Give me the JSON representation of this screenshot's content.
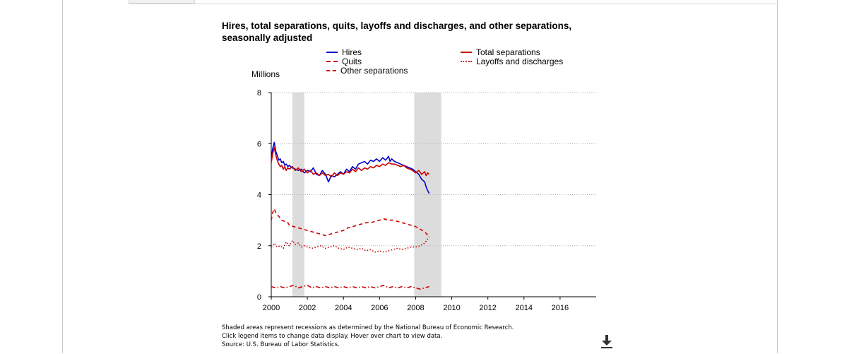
{
  "chart_data": {
    "type": "line",
    "title": "Hires, total separations, quits, layoffs and discharges, and other separations, seasonally adjusted",
    "ylabel": "Millions",
    "xlabel": "",
    "xlim": [
      2000,
      2018
    ],
    "ylim": [
      0,
      8
    ],
    "x_ticks": [
      "2000",
      "2002",
      "2004",
      "2006",
      "2008",
      "2010",
      "2012",
      "2014",
      "2016"
    ],
    "y_ticks": [
      "0",
      "2",
      "4",
      "6",
      "8"
    ],
    "grid": "horizontal dotted",
    "recessions": [
      {
        "start": 2001.17,
        "end": 2001.83
      },
      {
        "start": 2007.92,
        "end": 2009.42
      }
    ],
    "series": [
      {
        "name": "Hires",
        "color": "#0000cc",
        "style": "solid",
        "points": [
          [
            2000.0,
            5.4
          ],
          [
            2000.08,
            5.8
          ],
          [
            2000.17,
            6.05
          ],
          [
            2000.25,
            5.7
          ],
          [
            2000.33,
            5.55
          ],
          [
            2000.42,
            5.35
          ],
          [
            2000.5,
            5.4
          ],
          [
            2000.58,
            5.25
          ],
          [
            2000.67,
            5.3
          ],
          [
            2000.75,
            5.15
          ],
          [
            2000.83,
            5.2
          ],
          [
            2000.92,
            5.1
          ],
          [
            2001.0,
            5.15
          ],
          [
            2001.17,
            5.05
          ],
          [
            2001.33,
            5.0
          ],
          [
            2001.5,
            4.95
          ],
          [
            2001.67,
            5.0
          ],
          [
            2001.83,
            4.85
          ],
          [
            2002.0,
            4.95
          ],
          [
            2002.17,
            4.9
          ],
          [
            2002.33,
            5.05
          ],
          [
            2002.5,
            4.8
          ],
          [
            2002.67,
            4.75
          ],
          [
            2002.83,
            4.95
          ],
          [
            2003.0,
            4.8
          ],
          [
            2003.17,
            4.5
          ],
          [
            2003.33,
            4.75
          ],
          [
            2003.5,
            4.7
          ],
          [
            2003.67,
            4.8
          ],
          [
            2003.83,
            4.9
          ],
          [
            2004.0,
            4.8
          ],
          [
            2004.17,
            5.0
          ],
          [
            2004.33,
            4.9
          ],
          [
            2004.5,
            5.1
          ],
          [
            2004.67,
            5.0
          ],
          [
            2004.83,
            5.2
          ],
          [
            2005.0,
            5.25
          ],
          [
            2005.17,
            5.3
          ],
          [
            2005.33,
            5.2
          ],
          [
            2005.5,
            5.35
          ],
          [
            2005.67,
            5.3
          ],
          [
            2005.83,
            5.4
          ],
          [
            2006.0,
            5.3
          ],
          [
            2006.17,
            5.45
          ],
          [
            2006.33,
            5.35
          ],
          [
            2006.5,
            5.5
          ],
          [
            2006.58,
            5.3
          ],
          [
            2006.67,
            5.4
          ],
          [
            2006.83,
            5.3
          ],
          [
            2007.0,
            5.25
          ],
          [
            2007.17,
            5.2
          ],
          [
            2007.33,
            5.15
          ],
          [
            2007.5,
            5.1
          ],
          [
            2007.67,
            5.05
          ],
          [
            2007.83,
            5.0
          ],
          [
            2008.0,
            4.9
          ],
          [
            2008.17,
            4.8
          ],
          [
            2008.33,
            4.6
          ],
          [
            2008.5,
            4.5
          ],
          [
            2008.58,
            4.3
          ],
          [
            2008.67,
            4.15
          ],
          [
            2008.75,
            4.05
          ]
        ]
      },
      {
        "name": "Total separations",
        "color": "#cc0000",
        "style": "solid",
        "points": [
          [
            2000.0,
            5.25
          ],
          [
            2000.08,
            5.6
          ],
          [
            2000.17,
            5.85
          ],
          [
            2000.25,
            5.55
          ],
          [
            2000.33,
            5.35
          ],
          [
            2000.42,
            5.2
          ],
          [
            2000.5,
            5.1
          ],
          [
            2000.58,
            5.15
          ],
          [
            2000.67,
            5.0
          ],
          [
            2000.75,
            5.1
          ],
          [
            2000.83,
            4.95
          ],
          [
            2000.92,
            5.05
          ],
          [
            2001.0,
            5.0
          ],
          [
            2001.17,
            5.1
          ],
          [
            2001.33,
            4.95
          ],
          [
            2001.5,
            5.05
          ],
          [
            2001.67,
            4.9
          ],
          [
            2001.83,
            5.0
          ],
          [
            2002.0,
            4.85
          ],
          [
            2002.17,
            4.95
          ],
          [
            2002.33,
            4.8
          ],
          [
            2002.5,
            4.85
          ],
          [
            2002.67,
            4.75
          ],
          [
            2002.83,
            4.85
          ],
          [
            2003.0,
            4.75
          ],
          [
            2003.17,
            4.8
          ],
          [
            2003.33,
            4.7
          ],
          [
            2003.5,
            4.85
          ],
          [
            2003.67,
            4.75
          ],
          [
            2003.83,
            4.85
          ],
          [
            2004.0,
            4.8
          ],
          [
            2004.17,
            4.9
          ],
          [
            2004.33,
            4.85
          ],
          [
            2004.5,
            5.0
          ],
          [
            2004.67,
            4.9
          ],
          [
            2004.83,
            5.05
          ],
          [
            2005.0,
            4.95
          ],
          [
            2005.17,
            5.05
          ],
          [
            2005.33,
            5.0
          ],
          [
            2005.5,
            5.1
          ],
          [
            2005.67,
            5.05
          ],
          [
            2005.83,
            5.15
          ],
          [
            2006.0,
            5.1
          ],
          [
            2006.17,
            5.2
          ],
          [
            2006.33,
            5.15
          ],
          [
            2006.5,
            5.25
          ],
          [
            2006.67,
            5.2
          ],
          [
            2006.83,
            5.2
          ],
          [
            2007.0,
            5.15
          ],
          [
            2007.17,
            5.1
          ],
          [
            2007.33,
            5.15
          ],
          [
            2007.5,
            5.05
          ],
          [
            2007.67,
            5.0
          ],
          [
            2007.83,
            4.95
          ],
          [
            2008.0,
            4.85
          ],
          [
            2008.17,
            4.95
          ],
          [
            2008.33,
            4.8
          ],
          [
            2008.5,
            4.9
          ],
          [
            2008.58,
            4.75
          ],
          [
            2008.67,
            4.85
          ],
          [
            2008.75,
            4.8
          ]
        ]
      },
      {
        "name": "Quits",
        "color": "#cc0000",
        "style": "dashed",
        "points": [
          [
            2000.0,
            3.0
          ],
          [
            2000.08,
            3.3
          ],
          [
            2000.17,
            3.45
          ],
          [
            2000.25,
            3.3
          ],
          [
            2000.42,
            3.15
          ],
          [
            2000.58,
            3.0
          ],
          [
            2000.75,
            2.95
          ],
          [
            2000.92,
            2.9
          ],
          [
            2001.0,
            2.8
          ],
          [
            2001.25,
            2.75
          ],
          [
            2001.5,
            2.7
          ],
          [
            2001.75,
            2.65
          ],
          [
            2002.0,
            2.6
          ],
          [
            2002.25,
            2.55
          ],
          [
            2002.5,
            2.5
          ],
          [
            2002.75,
            2.45
          ],
          [
            2003.0,
            2.4
          ],
          [
            2003.25,
            2.45
          ],
          [
            2003.5,
            2.5
          ],
          [
            2003.75,
            2.55
          ],
          [
            2004.0,
            2.6
          ],
          [
            2004.25,
            2.7
          ],
          [
            2004.5,
            2.75
          ],
          [
            2004.75,
            2.8
          ],
          [
            2005.0,
            2.85
          ],
          [
            2005.25,
            2.9
          ],
          [
            2005.5,
            2.9
          ],
          [
            2005.75,
            2.95
          ],
          [
            2006.0,
            3.0
          ],
          [
            2006.25,
            3.05
          ],
          [
            2006.5,
            3.0
          ],
          [
            2006.75,
            3.0
          ],
          [
            2007.0,
            2.95
          ],
          [
            2007.25,
            2.9
          ],
          [
            2007.5,
            2.85
          ],
          [
            2007.75,
            2.8
          ],
          [
            2008.0,
            2.75
          ],
          [
            2008.25,
            2.65
          ],
          [
            2008.5,
            2.55
          ],
          [
            2008.75,
            2.35
          ]
        ]
      },
      {
        "name": "Layoffs and discharges",
        "color": "#cc0000",
        "style": "dotted",
        "points": [
          [
            2000.0,
            1.95
          ],
          [
            2000.17,
            2.1
          ],
          [
            2000.33,
            1.95
          ],
          [
            2000.5,
            2.0
          ],
          [
            2000.67,
            1.9
          ],
          [
            2000.83,
            2.15
          ],
          [
            2001.0,
            2.0
          ],
          [
            2001.17,
            2.2
          ],
          [
            2001.33,
            2.05
          ],
          [
            2001.5,
            2.1
          ],
          [
            2001.67,
            1.95
          ],
          [
            2001.83,
            2.0
          ],
          [
            2002.0,
            1.95
          ],
          [
            2002.25,
            1.9
          ],
          [
            2002.5,
            1.95
          ],
          [
            2002.75,
            2.0
          ],
          [
            2003.0,
            1.9
          ],
          [
            2003.25,
            1.95
          ],
          [
            2003.5,
            2.0
          ],
          [
            2003.75,
            1.9
          ],
          [
            2004.0,
            1.85
          ],
          [
            2004.25,
            1.95
          ],
          [
            2004.5,
            1.9
          ],
          [
            2004.75,
            1.85
          ],
          [
            2005.0,
            1.9
          ],
          [
            2005.25,
            1.8
          ],
          [
            2005.5,
            1.85
          ],
          [
            2005.75,
            1.75
          ],
          [
            2006.0,
            1.8
          ],
          [
            2006.25,
            1.75
          ],
          [
            2006.5,
            1.8
          ],
          [
            2006.75,
            1.85
          ],
          [
            2007.0,
            1.9
          ],
          [
            2007.25,
            1.85
          ],
          [
            2007.5,
            1.9
          ],
          [
            2007.75,
            1.95
          ],
          [
            2008.0,
            1.95
          ],
          [
            2008.25,
            2.0
          ],
          [
            2008.5,
            2.1
          ],
          [
            2008.75,
            2.35
          ]
        ]
      },
      {
        "name": "Other separations",
        "color": "#cc0000",
        "style": "dashdot",
        "points": [
          [
            2000.0,
            0.4
          ],
          [
            2000.25,
            0.35
          ],
          [
            2000.5,
            0.4
          ],
          [
            2000.75,
            0.35
          ],
          [
            2001.0,
            0.4
          ],
          [
            2001.25,
            0.45
          ],
          [
            2001.5,
            0.35
          ],
          [
            2001.75,
            0.4
          ],
          [
            2002.0,
            0.45
          ],
          [
            2002.25,
            0.35
          ],
          [
            2002.5,
            0.4
          ],
          [
            2002.75,
            0.35
          ],
          [
            2003.0,
            0.4
          ],
          [
            2003.25,
            0.35
          ],
          [
            2003.5,
            0.4
          ],
          [
            2003.75,
            0.35
          ],
          [
            2004.0,
            0.4
          ],
          [
            2004.25,
            0.35
          ],
          [
            2004.5,
            0.4
          ],
          [
            2004.75,
            0.35
          ],
          [
            2005.0,
            0.4
          ],
          [
            2005.25,
            0.35
          ],
          [
            2005.5,
            0.4
          ],
          [
            2005.75,
            0.35
          ],
          [
            2006.0,
            0.4
          ],
          [
            2006.25,
            0.45
          ],
          [
            2006.5,
            0.35
          ],
          [
            2006.75,
            0.4
          ],
          [
            2007.0,
            0.35
          ],
          [
            2007.25,
            0.4
          ],
          [
            2007.5,
            0.35
          ],
          [
            2007.75,
            0.4
          ],
          [
            2008.0,
            0.35
          ],
          [
            2008.25,
            0.3
          ],
          [
            2008.5,
            0.35
          ],
          [
            2008.75,
            0.4
          ]
        ]
      }
    ]
  },
  "legend": {
    "hires": "Hires",
    "quits": "Quits",
    "other": "Other separations",
    "total": "Total separations",
    "layoffs": "Layoffs and discharges"
  },
  "footnotes": {
    "line1": "Shaded areas represent recessions as determined by the National Bureau of Economic Research.",
    "line2": "Click legend items to change data display. Hover over chart to view data.",
    "line3": "Source: U.S. Bureau of Labor Statistics."
  },
  "download_icon": "download-icon"
}
